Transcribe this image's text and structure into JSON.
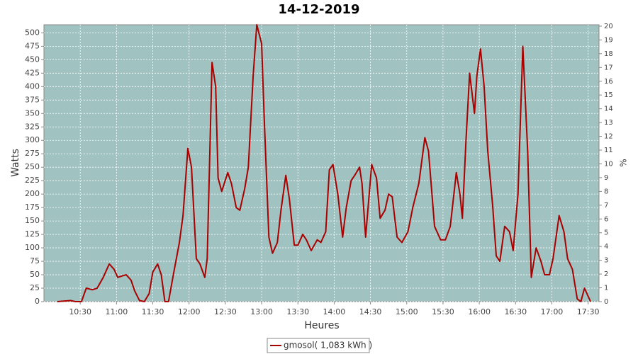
{
  "chart_data": {
    "type": "line",
    "title": "14-12-2019",
    "x_label": "Heures",
    "y_label": "Watts",
    "y2_label": "%",
    "x": [
      "10:11",
      "10:22",
      "10:26",
      "10:31",
      "10:35",
      "10:40",
      "10:44",
      "10:49",
      "10:54",
      "10:58",
      "11:01",
      "11:05",
      "11:08",
      "11:12",
      "11:15",
      "11:19",
      "11:23",
      "11:27",
      "11:30",
      "11:34",
      "11:37",
      "11:40",
      "11:43",
      "11:47",
      "11:52",
      "11:55",
      "11:59",
      "12:02",
      "12:06",
      "12:09",
      "12:13",
      "12:15",
      "12:19",
      "12:22",
      "12:24",
      "12:27",
      "12:32",
      "12:35",
      "12:39",
      "12:42",
      "12:46",
      "12:49",
      "12:53",
      "12:56",
      "13:00",
      "13:02",
      "13:06",
      "13:09",
      "13:13",
      "13:16",
      "13:20",
      "13:23",
      "13:27",
      "13:30",
      "13:34",
      "13:37",
      "13:41",
      "13:46",
      "13:49",
      "13:53",
      "13:56",
      "13:59",
      "14:03",
      "14:07",
      "14:10",
      "14:14",
      "14:17",
      "14:21",
      "14:23",
      "14:26",
      "14:31",
      "14:35",
      "14:38",
      "14:42",
      "14:45",
      "14:48",
      "14:52",
      "14:56",
      "15:01",
      "15:05",
      "15:10",
      "15:15",
      "15:18",
      "15:23",
      "15:28",
      "15:32",
      "15:36",
      "15:41",
      "15:44",
      "15:46",
      "15:49",
      "15:52",
      "15:56",
      "15:58",
      "16:01",
      "16:04",
      "16:07",
      "16:11",
      "16:14",
      "16:17",
      "16:21",
      "16:25",
      "16:28",
      "16:32",
      "16:36",
      "16:40",
      "16:43",
      "16:47",
      "16:51",
      "16:54",
      "16:58",
      "17:01",
      "17:06",
      "17:10",
      "17:13",
      "17:17",
      "17:21",
      "17:24",
      "17:27",
      "17:29",
      "17:32"
    ],
    "series": [
      {
        "name": "gmosol( 1,083 kWh )",
        "color": "#aa0000",
        "values": [
          0,
          2,
          0,
          0,
          25,
          22,
          25,
          45,
          70,
          60,
          45,
          48,
          50,
          40,
          20,
          2,
          0,
          15,
          55,
          70,
          50,
          0,
          0,
          50,
          110,
          160,
          285,
          250,
          80,
          70,
          45,
          80,
          445,
          400,
          230,
          205,
          240,
          220,
          175,
          170,
          210,
          250,
          420,
          515,
          480,
          350,
          120,
          90,
          110,
          170,
          235,
          190,
          105,
          105,
          125,
          115,
          95,
          115,
          110,
          130,
          245,
          255,
          200,
          120,
          175,
          225,
          235,
          250,
          220,
          120,
          255,
          230,
          155,
          170,
          200,
          195,
          120,
          110,
          130,
          175,
          220,
          305,
          280,
          140,
          115,
          115,
          140,
          240,
          200,
          155,
          300,
          425,
          350,
          420,
          470,
          400,
          280,
          180,
          85,
          75,
          140,
          130,
          95,
          200,
          475,
          280,
          45,
          100,
          75,
          50,
          50,
          80,
          160,
          130,
          80,
          60,
          5,
          0,
          25,
          15,
          0
        ]
      }
    ],
    "xlim": [
      "10:00",
      "17:39"
    ],
    "xticks": [
      "10:30",
      "11:00",
      "11:30",
      "12:00",
      "12:30",
      "13:00",
      "13:30",
      "14:00",
      "14:30",
      "15:00",
      "15:30",
      "16:00",
      "16:30",
      "17:00",
      "17:30"
    ],
    "ylim": [
      0,
      515
    ],
    "yticks": [
      0,
      25,
      50,
      75,
      100,
      125,
      150,
      175,
      200,
      225,
      250,
      275,
      300,
      325,
      350,
      375,
      400,
      425,
      450,
      475,
      500
    ],
    "y2lim": [
      0,
      20.1
    ],
    "y2ticks": [
      0,
      1,
      2,
      3,
      4,
      5,
      6,
      7,
      8,
      9,
      10,
      11,
      12,
      13,
      14,
      15,
      16,
      17,
      18,
      19,
      20
    ],
    "grid": true,
    "legend": "bottom",
    "background": "#a0c2c0"
  }
}
